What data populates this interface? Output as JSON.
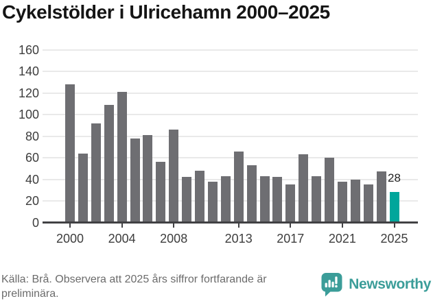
{
  "title": "Cykelstölder i Ulricehamn 2000–2025",
  "chart_data": {
    "type": "bar",
    "title": "Cykelstölder i Ulricehamn 2000–2025",
    "categories": [
      "2000",
      "2001",
      "2002",
      "2003",
      "2004",
      "2005",
      "2006",
      "2007",
      "2008",
      "2009",
      "2010",
      "2011",
      "2012",
      "2013",
      "2014",
      "2015",
      "2016",
      "2017",
      "2018",
      "2019",
      "2020",
      "2021",
      "2022",
      "2023",
      "2024",
      "2025"
    ],
    "values": [
      128,
      64,
      92,
      109,
      121,
      78,
      81,
      56,
      86,
      42,
      48,
      38,
      43,
      66,
      53,
      43,
      42,
      35,
      63,
      43,
      60,
      38,
      40,
      35,
      47,
      28
    ],
    "xlabel": "",
    "ylabel": "",
    "ylim": [
      0,
      160
    ],
    "yticks": [
      0,
      20,
      40,
      60,
      80,
      100,
      120,
      140,
      160
    ],
    "xtick_years": [
      "2000",
      "2004",
      "2008",
      "2013",
      "2017",
      "2021",
      "2025"
    ],
    "grid": true,
    "legend": "none",
    "bar_color": "#6e6e72",
    "highlight_category": "2025",
    "highlight_color": "#00a69b",
    "highlight_value_label": "28"
  },
  "footer": {
    "source_lines": [
      "Källa: Brå. Observera att 2025 års siffror fortfarande är",
      "preliminära."
    ],
    "brand": "Newsworthy"
  },
  "colors": {
    "bar_gray": "#6e6e72",
    "bar_teal": "#00a69b",
    "brand_teal": "#3b9d99",
    "grid": "#e9e9e9",
    "axis": "#414144",
    "title_text": "#151515",
    "axis_text": "#3d3d3d",
    "footer_text": "#6b6b6b"
  }
}
